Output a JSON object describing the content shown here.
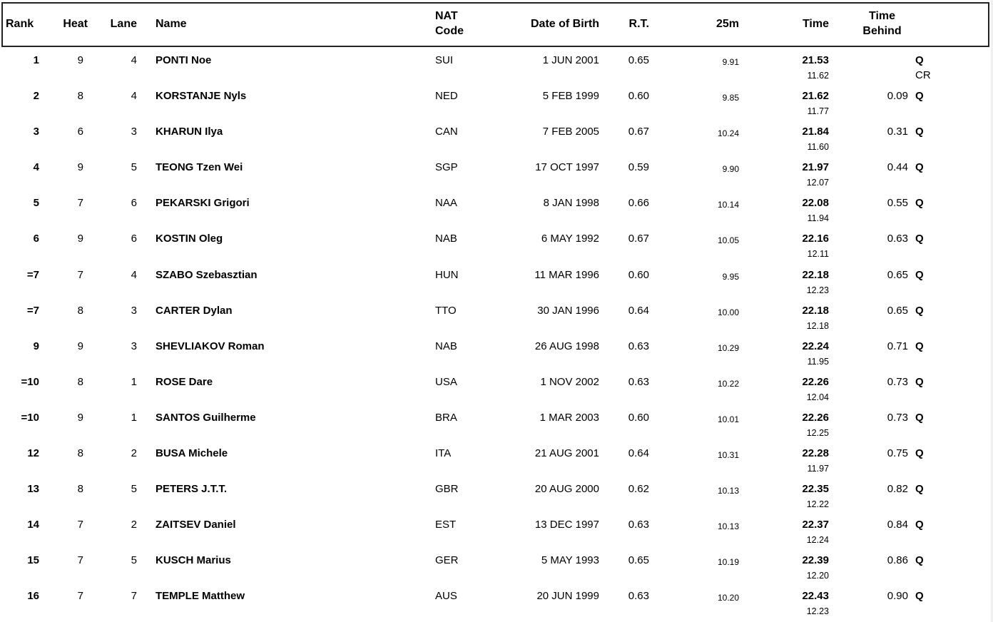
{
  "colors": {
    "text": "#000000",
    "header_border": "#222222",
    "background": "#ffffff"
  },
  "table": {
    "header": {
      "rank": "Rank",
      "heat": "Heat",
      "lane": "Lane",
      "name": "Name",
      "nat_line1": "NAT",
      "nat_line2": "Code",
      "dob": "Date of Birth",
      "rt": "R.T.",
      "m25": "25m",
      "time": "Time",
      "behind_line1": "Time",
      "behind_line2": "Behind",
      "q": ""
    },
    "rows": [
      {
        "rank": "1",
        "heat": "9",
        "lane": "4",
        "name": "PONTI Noe",
        "nat": "SUI",
        "dob": "1 JUN 2001",
        "rt": "0.65",
        "m25": "9.91",
        "time": "21.53",
        "split": "11.62",
        "behind": "",
        "q": "Q",
        "note": "CR"
      },
      {
        "rank": "2",
        "heat": "8",
        "lane": "4",
        "name": "KORSTANJE Nyls",
        "nat": "NED",
        "dob": "5 FEB 1999",
        "rt": "0.60",
        "m25": "9.85",
        "time": "21.62",
        "split": "11.77",
        "behind": "0.09",
        "q": "Q",
        "note": ""
      },
      {
        "rank": "3",
        "heat": "6",
        "lane": "3",
        "name": "KHARUN Ilya",
        "nat": "CAN",
        "dob": "7 FEB 2005",
        "rt": "0.67",
        "m25": "10.24",
        "time": "21.84",
        "split": "11.60",
        "behind": "0.31",
        "q": "Q",
        "note": ""
      },
      {
        "rank": "4",
        "heat": "9",
        "lane": "5",
        "name": "TEONG Tzen Wei",
        "nat": "SGP",
        "dob": "17 OCT 1997",
        "rt": "0.59",
        "m25": "9.90",
        "time": "21.97",
        "split": "12.07",
        "behind": "0.44",
        "q": "Q",
        "note": ""
      },
      {
        "rank": "5",
        "heat": "7",
        "lane": "6",
        "name": "PEKARSKI Grigori",
        "nat": "NAA",
        "dob": "8 JAN 1998",
        "rt": "0.66",
        "m25": "10.14",
        "time": "22.08",
        "split": "11.94",
        "behind": "0.55",
        "q": "Q",
        "note": ""
      },
      {
        "rank": "6",
        "heat": "9",
        "lane": "6",
        "name": "KOSTIN Oleg",
        "nat": "NAB",
        "dob": "6 MAY 1992",
        "rt": "0.67",
        "m25": "10.05",
        "time": "22.16",
        "split": "12.11",
        "behind": "0.63",
        "q": "Q",
        "note": ""
      },
      {
        "rank": "=7",
        "heat": "7",
        "lane": "4",
        "name": "SZABO Szebasztian",
        "nat": "HUN",
        "dob": "11 MAR 1996",
        "rt": "0.60",
        "m25": "9.95",
        "time": "22.18",
        "split": "12.23",
        "behind": "0.65",
        "q": "Q",
        "note": ""
      },
      {
        "rank": "=7",
        "heat": "8",
        "lane": "3",
        "name": "CARTER Dylan",
        "nat": "TTO",
        "dob": "30 JAN 1996",
        "rt": "0.64",
        "m25": "10.00",
        "time": "22.18",
        "split": "12.18",
        "behind": "0.65",
        "q": "Q",
        "note": ""
      },
      {
        "rank": "9",
        "heat": "9",
        "lane": "3",
        "name": "SHEVLIAKOV Roman",
        "nat": "NAB",
        "dob": "26 AUG 1998",
        "rt": "0.63",
        "m25": "10.29",
        "time": "22.24",
        "split": "11.95",
        "behind": "0.71",
        "q": "Q",
        "note": ""
      },
      {
        "rank": "=10",
        "heat": "8",
        "lane": "1",
        "name": "ROSE Dare",
        "nat": "USA",
        "dob": "1 NOV 2002",
        "rt": "0.63",
        "m25": "10.22",
        "time": "22.26",
        "split": "12.04",
        "behind": "0.73",
        "q": "Q",
        "note": ""
      },
      {
        "rank": "=10",
        "heat": "9",
        "lane": "1",
        "name": "SANTOS Guilherme",
        "nat": "BRA",
        "dob": "1 MAR 2003",
        "rt": "0.60",
        "m25": "10.01",
        "time": "22.26",
        "split": "12.25",
        "behind": "0.73",
        "q": "Q",
        "note": ""
      },
      {
        "rank": "12",
        "heat": "8",
        "lane": "2",
        "name": "BUSA Michele",
        "nat": "ITA",
        "dob": "21 AUG 2001",
        "rt": "0.64",
        "m25": "10.31",
        "time": "22.28",
        "split": "11.97",
        "behind": "0.75",
        "q": "Q",
        "note": ""
      },
      {
        "rank": "13",
        "heat": "8",
        "lane": "5",
        "name": "PETERS J.T.T.",
        "nat": "GBR",
        "dob": "20 AUG 2000",
        "rt": "0.62",
        "m25": "10.13",
        "time": "22.35",
        "split": "12.22",
        "behind": "0.82",
        "q": "Q",
        "note": ""
      },
      {
        "rank": "14",
        "heat": "7",
        "lane": "2",
        "name": "ZAITSEV Daniel",
        "nat": "EST",
        "dob": "13 DEC 1997",
        "rt": "0.63",
        "m25": "10.13",
        "time": "22.37",
        "split": "12.24",
        "behind": "0.84",
        "q": "Q",
        "note": ""
      },
      {
        "rank": "15",
        "heat": "7",
        "lane": "5",
        "name": "KUSCH Marius",
        "nat": "GER",
        "dob": "5 MAY 1993",
        "rt": "0.65",
        "m25": "10.19",
        "time": "22.39",
        "split": "12.20",
        "behind": "0.86",
        "q": "Q",
        "note": ""
      },
      {
        "rank": "16",
        "heat": "7",
        "lane": "7",
        "name": "TEMPLE Matthew",
        "nat": "AUS",
        "dob": "20 JUN 1999",
        "rt": "0.63",
        "m25": "10.20",
        "time": "22.43",
        "split": "12.23",
        "behind": "0.90",
        "q": "Q",
        "note": ""
      }
    ]
  }
}
